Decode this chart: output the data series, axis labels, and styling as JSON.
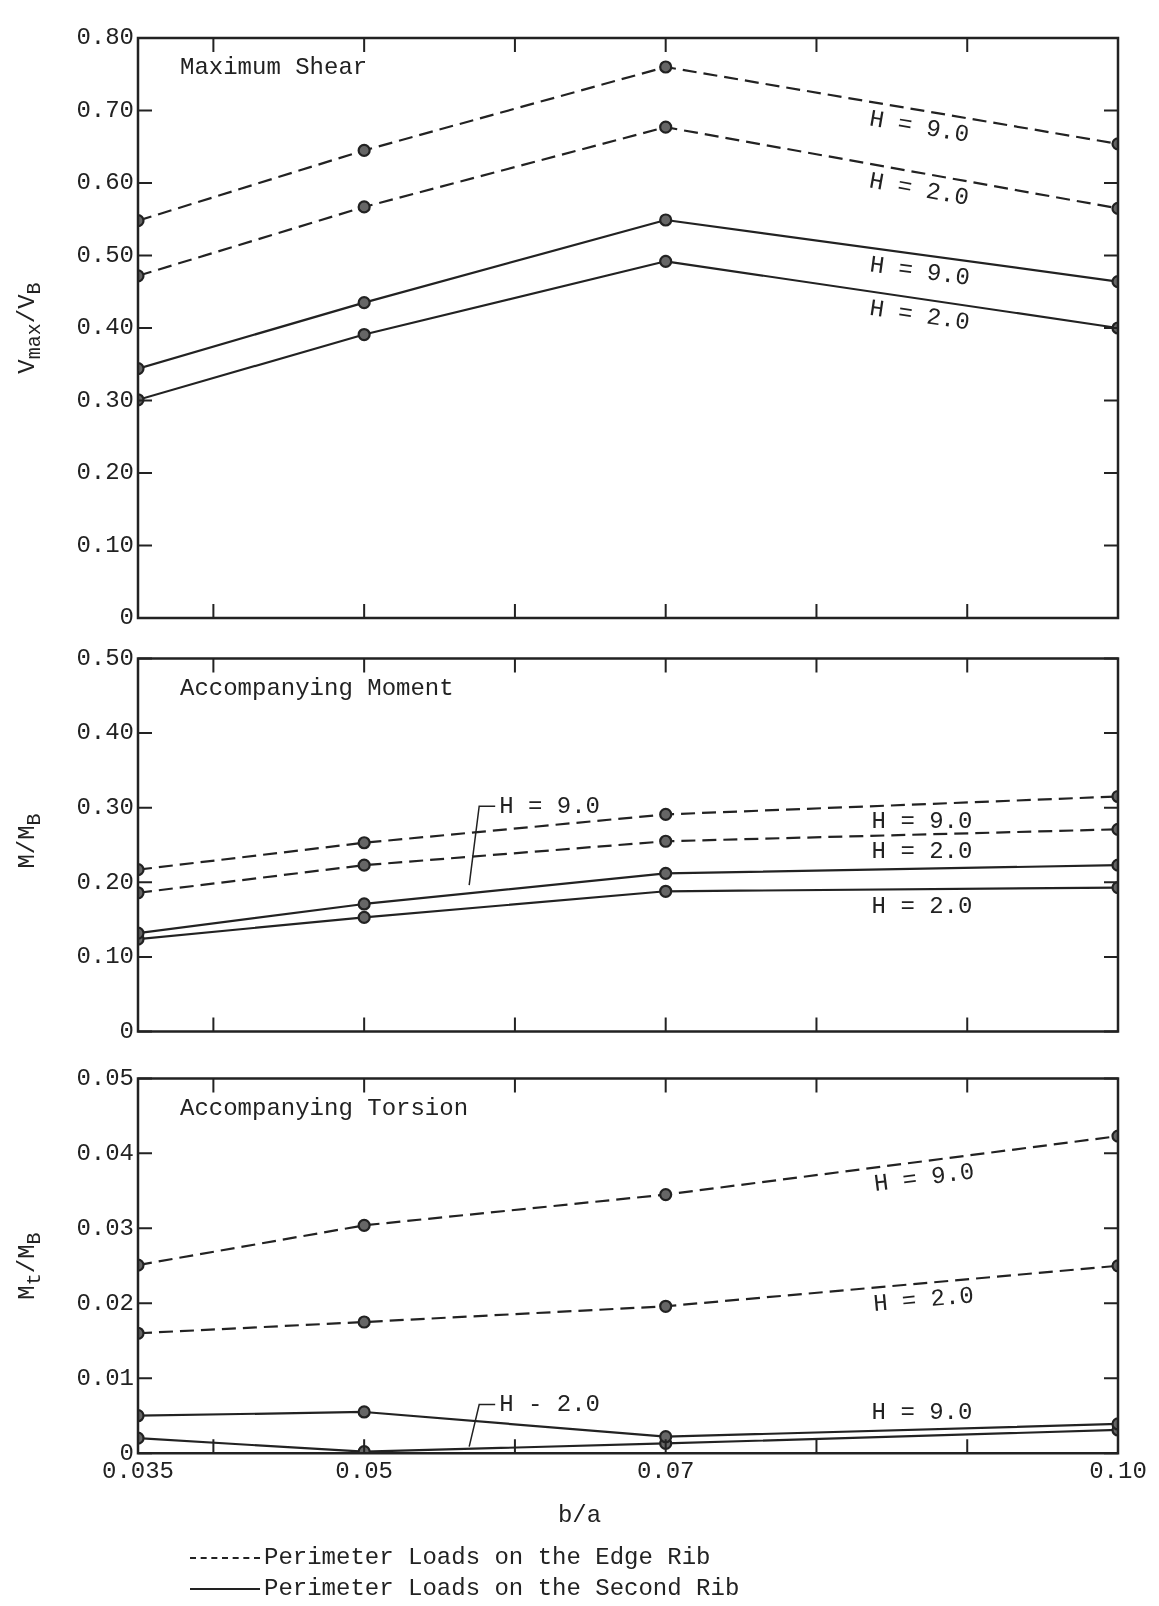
{
  "chart_data": [
    {
      "type": "line",
      "title": "Maximum Shear",
      "ylabel": "V$_{max}$/V$_{B}$",
      "x": [
        0.035,
        0.05,
        0.07,
        0.1
      ],
      "series": [
        {
          "name": "H = 9.0",
          "color": "#222222",
          "line_style": "dashed",
          "values": [
            0.548,
            0.645,
            0.76,
            0.654
          ]
        },
        {
          "name": "H = 2.0",
          "color": "#222222",
          "line_style": "dashed",
          "values": [
            0.472,
            0.567,
            0.677,
            0.565
          ]
        },
        {
          "name": "H = 9.0",
          "color": "#222222",
          "line_style": "solid",
          "values": [
            0.344,
            0.435,
            0.549,
            0.464
          ]
        },
        {
          "name": "H = 2.0",
          "color": "#222222",
          "line_style": "solid",
          "values": [
            0.301,
            0.391,
            0.492,
            0.4
          ]
        }
      ],
      "xlim": [
        0.035,
        0.1
      ],
      "xticks": [
        0.035,
        0.04,
        0.05,
        0.06,
        0.07,
        0.08,
        0.09,
        0.1
      ],
      "ylim": [
        0,
        0.8
      ],
      "yticks": [
        {
          "value": 0,
          "label": "0"
        },
        {
          "value": 0.1,
          "label": "0.10"
        },
        {
          "value": 0.2,
          "label": "0.20"
        },
        {
          "value": 0.3,
          "label": "0.30"
        },
        {
          "value": 0.4,
          "label": "0.40"
        },
        {
          "value": 0.5,
          "label": "0.50"
        },
        {
          "value": 0.6,
          "label": "0.60"
        },
        {
          "value": 0.7,
          "label": "0.70"
        },
        {
          "value": 0.8,
          "label": "0.80"
        }
      ],
      "tick_labels": "y",
      "marker": "circle",
      "grid": false
    },
    {
      "type": "line",
      "title": "Accompanying Moment",
      "ylabel": "M/M$_{B}$",
      "x": [
        0.035,
        0.05,
        0.07,
        0.1
      ],
      "series": [
        {
          "name": "H = 9.0",
          "color": "#222222",
          "line_style": "dashed",
          "values": [
            0.217,
            0.253,
            0.291,
            0.315
          ]
        },
        {
          "name": "H = 2.0",
          "color": "#222222",
          "line_style": "dashed",
          "values": [
            0.186,
            0.223,
            0.255,
            0.271
          ]
        },
        {
          "name": "H = 9.0",
          "color": "#222222",
          "line_style": "solid",
          "values": [
            0.132,
            0.171,
            0.212,
            0.223
          ]
        },
        {
          "name": "H = 2.0",
          "color": "#222222",
          "line_style": "solid",
          "values": [
            0.124,
            0.153,
            0.188,
            0.193
          ]
        }
      ],
      "xlim": [
        0.035,
        0.1
      ],
      "xticks": [
        0.035,
        0.04,
        0.05,
        0.06,
        0.07,
        0.08,
        0.09,
        0.1
      ],
      "ylim": [
        0,
        0.5
      ],
      "yticks": [
        {
          "value": 0,
          "label": "0"
        },
        {
          "value": 0.1,
          "label": "0.10"
        },
        {
          "value": 0.2,
          "label": "0.20"
        },
        {
          "value": 0.3,
          "label": "0.30"
        },
        {
          "value": 0.4,
          "label": "0.40"
        },
        {
          "value": 0.5,
          "label": "0.50"
        }
      ],
      "tick_labels": "y",
      "marker": "circle",
      "grid": false
    },
    {
      "type": "line",
      "title": "Accompanying Torsion",
      "xlabel": "b/a",
      "ylabel": "M$_{t}$/M$_{B}$",
      "x": [
        0.035,
        0.05,
        0.07,
        0.1
      ],
      "series": [
        {
          "name": "H = 9.0",
          "color": "#222222",
          "line_style": "dashed",
          "values": [
            0.0251,
            0.0304,
            0.0345,
            0.0423
          ]
        },
        {
          "name": "H = 2.0",
          "color": "#222222",
          "line_style": "dashed",
          "values": [
            0.016,
            0.0175,
            0.0196,
            0.025
          ]
        },
        {
          "name": "H = 9.0",
          "color": "#222222",
          "line_style": "solid",
          "values": [
            0.005,
            0.0055,
            0.0022,
            0.0039
          ]
        },
        {
          "name": "H - 2.0",
          "color": "#222222",
          "line_style": "solid",
          "values": [
            0.002,
            0.0002,
            0.0013,
            0.0031
          ]
        }
      ],
      "xlim": [
        0.035,
        0.1
      ],
      "xticks": [
        0.035,
        {
          "value": 0.04,
          "label": null
        },
        0.05,
        {
          "value": 0.06,
          "label": null
        },
        0.07,
        {
          "value": 0.08,
          "label": null
        },
        {
          "value": 0.09,
          "label": null
        },
        {
          "value": 0.1,
          "label": "0.10"
        }
      ],
      "ylim": [
        0,
        0.05
      ],
      "yticks": [
        {
          "value": 0,
          "label": "0"
        },
        {
          "value": 0.01,
          "label": "0.01"
        },
        {
          "value": 0.02,
          "label": "0.02"
        },
        {
          "value": 0.03,
          "label": "0.03"
        },
        {
          "value": 0.04,
          "label": "0.04"
        },
        {
          "value": 0.05,
          "label": "0.05"
        }
      ],
      "marker": "circle",
      "grid": false,
      "annotations": [
        "Perimeter Loads on the Edge Rib",
        "Perimeter Loads on the Second Rib"
      ]
    }
  ]
}
